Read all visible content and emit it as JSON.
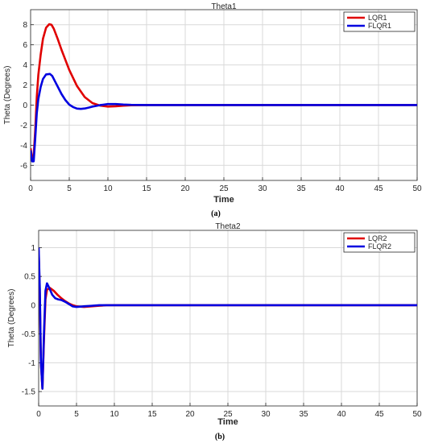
{
  "chart_data": [
    {
      "type": "line",
      "title": "Theta1",
      "xlabel": "Time",
      "ylabel": "Theta (Degrees)",
      "caption": "(a)",
      "xlim": [
        0,
        50
      ],
      "ylim": [
        -7.5,
        9.5
      ],
      "xticks": [
        0,
        5,
        10,
        15,
        20,
        25,
        30,
        35,
        40,
        45,
        50
      ],
      "yticks": [
        -6,
        -4,
        -2,
        0,
        2,
        4,
        6,
        8
      ],
      "grid": true,
      "legend_position": "top-right",
      "series": [
        {
          "name": "LQR1",
          "color": "#e00000",
          "x": [
            0,
            0.2,
            0.4,
            0.6,
            0.8,
            1.0,
            1.3,
            1.6,
            2.0,
            2.4,
            2.7,
            3.0,
            3.5,
            4.0,
            5.0,
            6.0,
            7.0,
            8.0,
            9.0,
            10.0,
            11.0,
            12.0,
            13.0,
            15.0,
            20.0,
            30.0,
            40.0,
            50.0
          ],
          "y": [
            -4.3,
            -5.3,
            -5.0,
            -2.5,
            0.8,
            3.0,
            5.0,
            6.6,
            7.7,
            8.05,
            8.0,
            7.6,
            6.6,
            5.5,
            3.5,
            1.9,
            0.8,
            0.2,
            -0.05,
            -0.15,
            -0.12,
            -0.06,
            -0.02,
            0.0,
            0.0,
            0.0,
            0.0,
            0.0
          ]
        },
        {
          "name": "FLQR1",
          "color": "#0000e0",
          "x": [
            0,
            0.2,
            0.4,
            0.6,
            0.8,
            1.0,
            1.3,
            1.6,
            2.0,
            2.5,
            2.8,
            3.2,
            3.6,
            4.0,
            4.5,
            5.0,
            5.5,
            6.0,
            6.5,
            7.0,
            7.5,
            8.0,
            9.0,
            10.0,
            11.0,
            12.0,
            13.0,
            15.0,
            20.0,
            30.0,
            40.0,
            50.0
          ],
          "y": [
            -4.5,
            -5.6,
            -5.6,
            -3.3,
            -0.8,
            0.6,
            1.8,
            2.6,
            3.05,
            3.1,
            2.9,
            2.3,
            1.7,
            1.1,
            0.5,
            0.05,
            -0.2,
            -0.35,
            -0.38,
            -0.34,
            -0.25,
            -0.15,
            0.0,
            0.1,
            0.1,
            0.05,
            0.02,
            0.0,
            0.0,
            0.0,
            0.0,
            0.0
          ]
        }
      ]
    },
    {
      "type": "line",
      "title": "Theta2",
      "xlabel": "Time",
      "ylabel": "Theta (Degrees)",
      "caption": "(b)",
      "xlim": [
        0,
        50
      ],
      "ylim": [
        -1.75,
        1.3
      ],
      "xticks": [
        0,
        5,
        10,
        15,
        20,
        25,
        30,
        35,
        40,
        45,
        50
      ],
      "yticks": [
        -1.5,
        -1,
        -0.5,
        0,
        0.5,
        1
      ],
      "grid": true,
      "legend_position": "top-right",
      "series": [
        {
          "name": "LQR2",
          "color": "#e00000",
          "x": [
            0,
            0.15,
            0.3,
            0.5,
            0.7,
            0.9,
            1.1,
            1.5,
            2.0,
            2.5,
            3.0,
            3.5,
            4.0,
            4.5,
            5.0,
            6.0,
            7.0,
            8.0,
            9.0,
            10.0,
            12.0,
            20.0,
            30.0,
            40.0,
            50.0
          ],
          "y": [
            0.95,
            0.2,
            -1.0,
            -1.45,
            -0.6,
            0.1,
            0.27,
            0.3,
            0.25,
            0.18,
            0.12,
            0.07,
            0.03,
            0.0,
            -0.02,
            -0.03,
            -0.02,
            -0.01,
            0.0,
            0.0,
            0.0,
            0.0,
            0.0,
            0.0,
            0.0
          ]
        },
        {
          "name": "FLQR2",
          "color": "#0000e0",
          "x": [
            0,
            0.15,
            0.3,
            0.5,
            0.7,
            0.9,
            1.1,
            1.4,
            1.8,
            2.2,
            2.6,
            3.0,
            3.5,
            4.0,
            4.5,
            5.0,
            6.0,
            7.0,
            8.0,
            9.0,
            10.0,
            12.0,
            20.0,
            30.0,
            40.0,
            50.0
          ],
          "y": [
            1.0,
            0.3,
            -1.0,
            -1.45,
            -0.5,
            0.25,
            0.38,
            0.3,
            0.18,
            0.12,
            0.1,
            0.09,
            0.06,
            0.02,
            -0.02,
            -0.03,
            -0.02,
            -0.01,
            0.0,
            0.0,
            0.0,
            0.0,
            0.0,
            0.0,
            0.0,
            0.0
          ]
        }
      ]
    }
  ]
}
